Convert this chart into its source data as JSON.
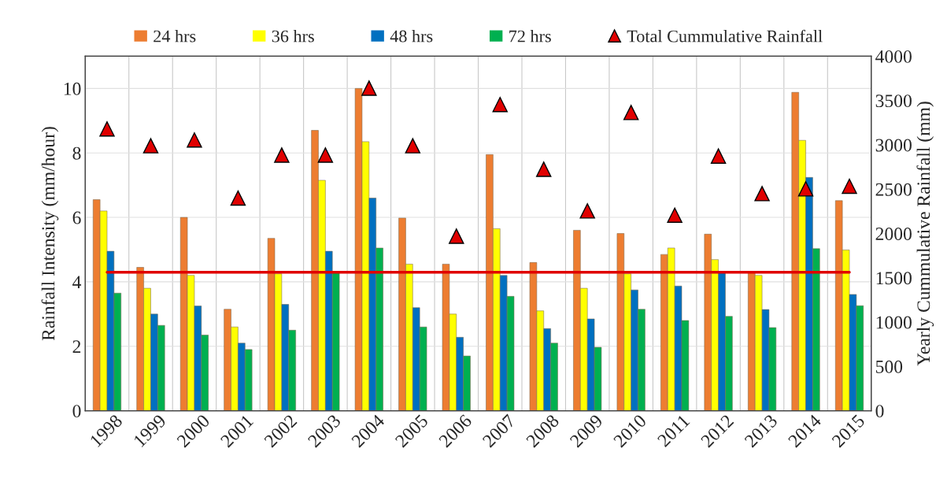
{
  "chart_data": {
    "type": "bar",
    "categories": [
      "1998",
      "1999",
      "2000",
      "2001",
      "2002",
      "2003",
      "2004",
      "2005",
      "2006",
      "2007",
      "2008",
      "2009",
      "2010",
      "2011",
      "2012",
      "2013",
      "2014",
      "2015"
    ],
    "series": [
      {
        "name": "24 hrs",
        "color": "#ed7d31",
        "values": [
          6.55,
          4.45,
          6.0,
          3.15,
          5.35,
          8.7,
          10.0,
          5.98,
          4.55,
          7.95,
          4.6,
          5.6,
          5.5,
          4.85,
          5.48,
          4.29,
          9.88,
          6.52
        ]
      },
      {
        "name": "36 hrs",
        "color": "#ffff00",
        "values": [
          6.2,
          3.8,
          4.2,
          2.6,
          4.25,
          7.15,
          8.35,
          4.55,
          3.0,
          5.65,
          3.1,
          3.8,
          4.25,
          5.05,
          4.69,
          4.2,
          8.39,
          4.99
        ]
      },
      {
        "name": "48 hrs",
        "color": "#0070c0",
        "values": [
          4.95,
          3.0,
          3.25,
          2.1,
          3.3,
          4.95,
          6.6,
          3.2,
          2.28,
          4.2,
          2.55,
          2.85,
          3.75,
          3.87,
          4.32,
          3.14,
          7.24,
          3.61
        ]
      },
      {
        "name": "72 hrs",
        "color": "#00b050",
        "values": [
          3.65,
          2.65,
          2.35,
          1.9,
          2.5,
          4.3,
          5.05,
          2.6,
          1.7,
          3.55,
          2.1,
          1.97,
          3.15,
          2.8,
          2.93,
          2.58,
          5.03,
          3.26
        ]
      },
      {
        "name": "Total Cummulative Rainfall",
        "type": "scatter",
        "marker": "triangle",
        "axis": "y2",
        "color": "#e00000",
        "values": [
          3180,
          2990,
          3055,
          2400,
          2885,
          2885,
          3640,
          2990,
          1970,
          3455,
          2725,
          2255,
          3365,
          2207,
          2874,
          2450,
          2504,
          2533
        ]
      },
      {
        "type": "line",
        "color": "#e00000",
        "values": [
          4.3,
          4.3,
          4.3,
          4.3,
          4.3,
          4.3,
          4.3,
          4.3,
          4.3,
          4.3,
          4.3,
          4.3,
          4.3,
          4.3,
          4.3,
          4.3,
          4.3,
          4.3
        ]
      }
    ],
    "ylabel": "Rainfall Intensity (mm/hour)",
    "y2label": "Yearly Cummulative Rainfall (mm)",
    "ylim": [
      0,
      11
    ],
    "yticks": [
      0,
      2,
      4,
      6,
      8,
      10
    ],
    "y2lim": [
      0,
      4000
    ],
    "y2ticks": [
      0,
      500,
      1000,
      1500,
      2000,
      2500,
      3000,
      3500,
      4000
    ],
    "grid": true,
    "legend": "top"
  }
}
